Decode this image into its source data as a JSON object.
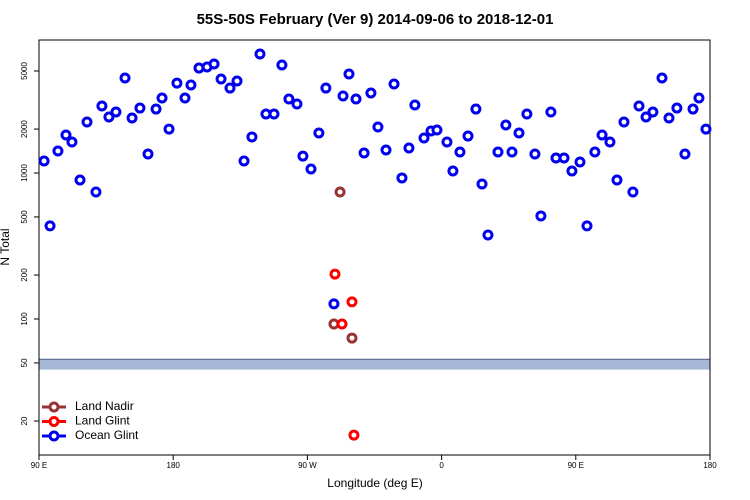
{
  "chart_data": {
    "type": "scatter",
    "title": "55S-50S February (Ver 9)   2014-09-06 to 2018-12-01",
    "x_label": "Longitude (deg E)",
    "y_label": "N Total",
    "xlim": [
      90,
      540
    ],
    "xticks": [
      {
        "value": 90,
        "label": "90 E"
      },
      180,
      {
        "value": 270,
        "label": "90 W"
      },
      {
        "value": 360,
        "label": "0"
      },
      {
        "value": 450,
        "label": "90 E"
      },
      {
        "value": 540,
        "label": "180"
      }
    ],
    "ylim": [
      11.7,
      8150
    ],
    "yscale": "log",
    "yticks": [
      20,
      50,
      100,
      200,
      500,
      1000,
      2000,
      5000
    ],
    "band": {
      "range": [
        45,
        53
      ],
      "color": "#a5b8d6"
    },
    "legend": "bottom-left",
    "series": [
      {
        "name": "Land Nadir",
        "color": "#993333",
        "x": [
          291.9,
          287.8,
          299.9
        ],
        "values": [
          741,
          92.4,
          74
        ]
      },
      {
        "name": "Land Glint",
        "color": "#ff0000",
        "x": [
          288.5,
          299.9,
          293.2,
          301.2
        ],
        "values": [
          203,
          131,
          92.4,
          16.0
        ]
      },
      {
        "name": "Ocean Glint",
        "color": "#0000ee",
        "x": [
          93.4,
          97.4,
          102.7,
          108.1,
          112.1,
          117.5,
          122.2,
          128.2,
          132.2,
          136.9,
          141.6,
          147.7,
          152.4,
          157.7,
          163.1,
          168.5,
          172.5,
          177.2,
          182.5,
          187.9,
          191.9,
          197.3,
          202.7,
          207.4,
          212.1,
          218.1,
          222.8,
          227.5,
          232.8,
          238.2,
          242.2,
          247.6,
          252.9,
          257.6,
          263.0,
          267.0,
          272.4,
          277.7,
          282.4,
          287.8,
          293.9,
          297.9,
          302.6,
          308.0,
          312.6,
          317.3,
          322.7,
          328.1,
          333.4,
          338.1,
          342.1,
          348.2,
          352.9,
          356.9,
          363.6,
          367.6,
          372.3,
          377.7,
          383.0,
          387.1,
          391.1,
          397.8,
          403.1,
          407.2,
          411.9,
          417.2,
          422.6,
          426.6,
          433.3,
          436.7,
          442.1,
          447.4,
          452.8,
          457.5,
          462.8,
          467.6,
          472.9,
          477.6,
          482.3,
          488.3,
          492.4,
          497.1,
          501.7,
          507.8,
          512.5,
          517.8,
          523.2,
          528.6,
          532.6,
          537.3
        ],
        "values": [
          1208,
          434,
          1415,
          1820,
          1630,
          895,
          2235,
          741,
          2877,
          2420,
          2618,
          4477,
          2382,
          2786,
          1349,
          2742,
          3266,
          2000,
          4130,
          3266,
          4008,
          5236,
          5321,
          5585,
          4406,
          3819,
          4266,
          1208,
          1766,
          6531,
          2536,
          2536,
          5495,
          3214,
          2972,
          1306,
          1065,
          1879,
          3819,
          127,
          3367,
          4764,
          3214,
          1371,
          3532,
          2065,
          1438,
          4074,
          925,
          1483,
          2924,
          1738,
          1941,
          1972,
          1630,
          1032,
          1393,
          1791,
          2742,
          841,
          376,
          1393,
          2133,
          1393,
          1879,
          2536,
          1349,
          508,
          2618,
          1267,
          1267,
          1032,
          1189,
          434,
          1393,
          1820,
          1630,
          895,
          2235,
          741,
          2877,
          2420,
          2618,
          4477,
          2382,
          2786,
          1349,
          2742,
          3266,
          2000
        ]
      }
    ]
  }
}
